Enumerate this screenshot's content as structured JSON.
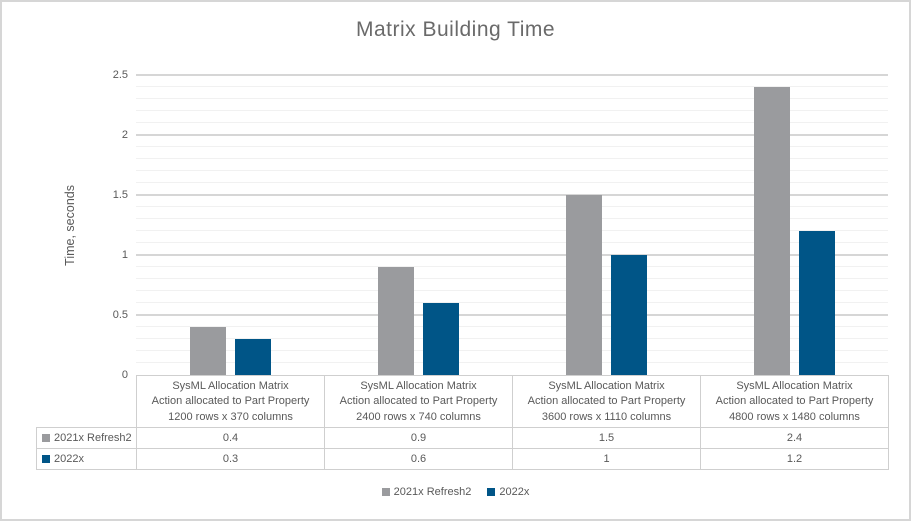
{
  "chart_data": {
    "type": "bar",
    "title": "Matrix Building Time",
    "ylabel": "Time, seconds",
    "ylim": [
      0,
      2.5
    ],
    "y_major_tick_step": 0.5,
    "y_minor_tick_step": 0.1,
    "y_tick_labels": [
      "0",
      "0.5",
      "1",
      "1.5",
      "2",
      "2.5"
    ],
    "grid": true,
    "legend_position": "bottom",
    "data_table_shown": true,
    "categories": [
      [
        "SysML Allocation Matrix",
        "Action allocated to Part Property",
        "1200 rows x 370 columns"
      ],
      [
        "SysML Allocation Matrix",
        "Action allocated to Part Property",
        "2400 rows x 740 columns"
      ],
      [
        "SysML Allocation Matrix",
        "Action allocated to Part Property",
        "3600 rows x 1110 columns"
      ],
      [
        "SysML Allocation Matrix",
        "Action allocated to Part Property",
        "4800 rows x 1480 columns"
      ]
    ],
    "series": [
      {
        "name": "2021x Refresh2",
        "color": "#9a9b9e",
        "values": [
          0.4,
          0.9,
          1.5,
          2.4
        ]
      },
      {
        "name": "2022x",
        "color": "#005587",
        "values": [
          0.3,
          0.6,
          1,
          1.2
        ]
      }
    ]
  },
  "colors": {
    "title_text": "#6a6a6a",
    "axis_text": "#595959",
    "major_gridline": "#d6d6d6",
    "minor_gridline": "#f1f1f1",
    "table_border": "#cfcfcf",
    "frame_border": "#d6d6d6"
  }
}
